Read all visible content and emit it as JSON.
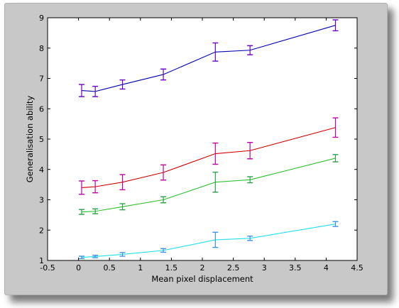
{
  "chart_data": {
    "type": "line",
    "title": "",
    "xlabel": "Mean pixel displacement",
    "ylabel": "Generalisation ability",
    "xlim": [
      -0.5,
      4.5
    ],
    "ylim": [
      1,
      9
    ],
    "xticks": [
      "-0.5",
      "0",
      "0.5",
      "1",
      "1.5",
      "2",
      "2.5",
      "3",
      "3.5",
      "4",
      "4.5"
    ],
    "yticks": [
      "1",
      "2",
      "3",
      "4",
      "5",
      "6",
      "7",
      "8",
      "9"
    ],
    "grid": false,
    "background": "#ffffff",
    "x": [
      0.05,
      0.27,
      0.71,
      1.37,
      2.21,
      2.77,
      4.15
    ],
    "series": [
      {
        "color": "#0000b0",
        "errorbar_color": "#6a00c8",
        "values": [
          6.6,
          6.57,
          6.8,
          7.13,
          7.87,
          7.93,
          8.75
        ],
        "errors": [
          0.2,
          0.17,
          0.15,
          0.18,
          0.3,
          0.15,
          0.18
        ]
      },
      {
        "color": "#d00000",
        "errorbar_color": "#c000a0",
        "values": [
          3.4,
          3.43,
          3.58,
          3.9,
          4.52,
          4.62,
          5.38
        ],
        "errors": [
          0.22,
          0.2,
          0.25,
          0.25,
          0.35,
          0.27,
          0.32
        ]
      },
      {
        "color": "#30c030",
        "errorbar_color": "#2aa04a",
        "values": [
          2.6,
          2.62,
          2.77,
          3.0,
          3.58,
          3.66,
          4.37
        ],
        "errors": [
          0.08,
          0.08,
          0.1,
          0.1,
          0.33,
          0.1,
          0.12
        ]
      },
      {
        "color": "#20e0e8",
        "errorbar_color": "#4090e0",
        "values": [
          1.1,
          1.13,
          1.2,
          1.33,
          1.68,
          1.73,
          2.2
        ],
        "errors": [
          0.04,
          0.04,
          0.06,
          0.06,
          0.25,
          0.07,
          0.08
        ]
      }
    ]
  }
}
